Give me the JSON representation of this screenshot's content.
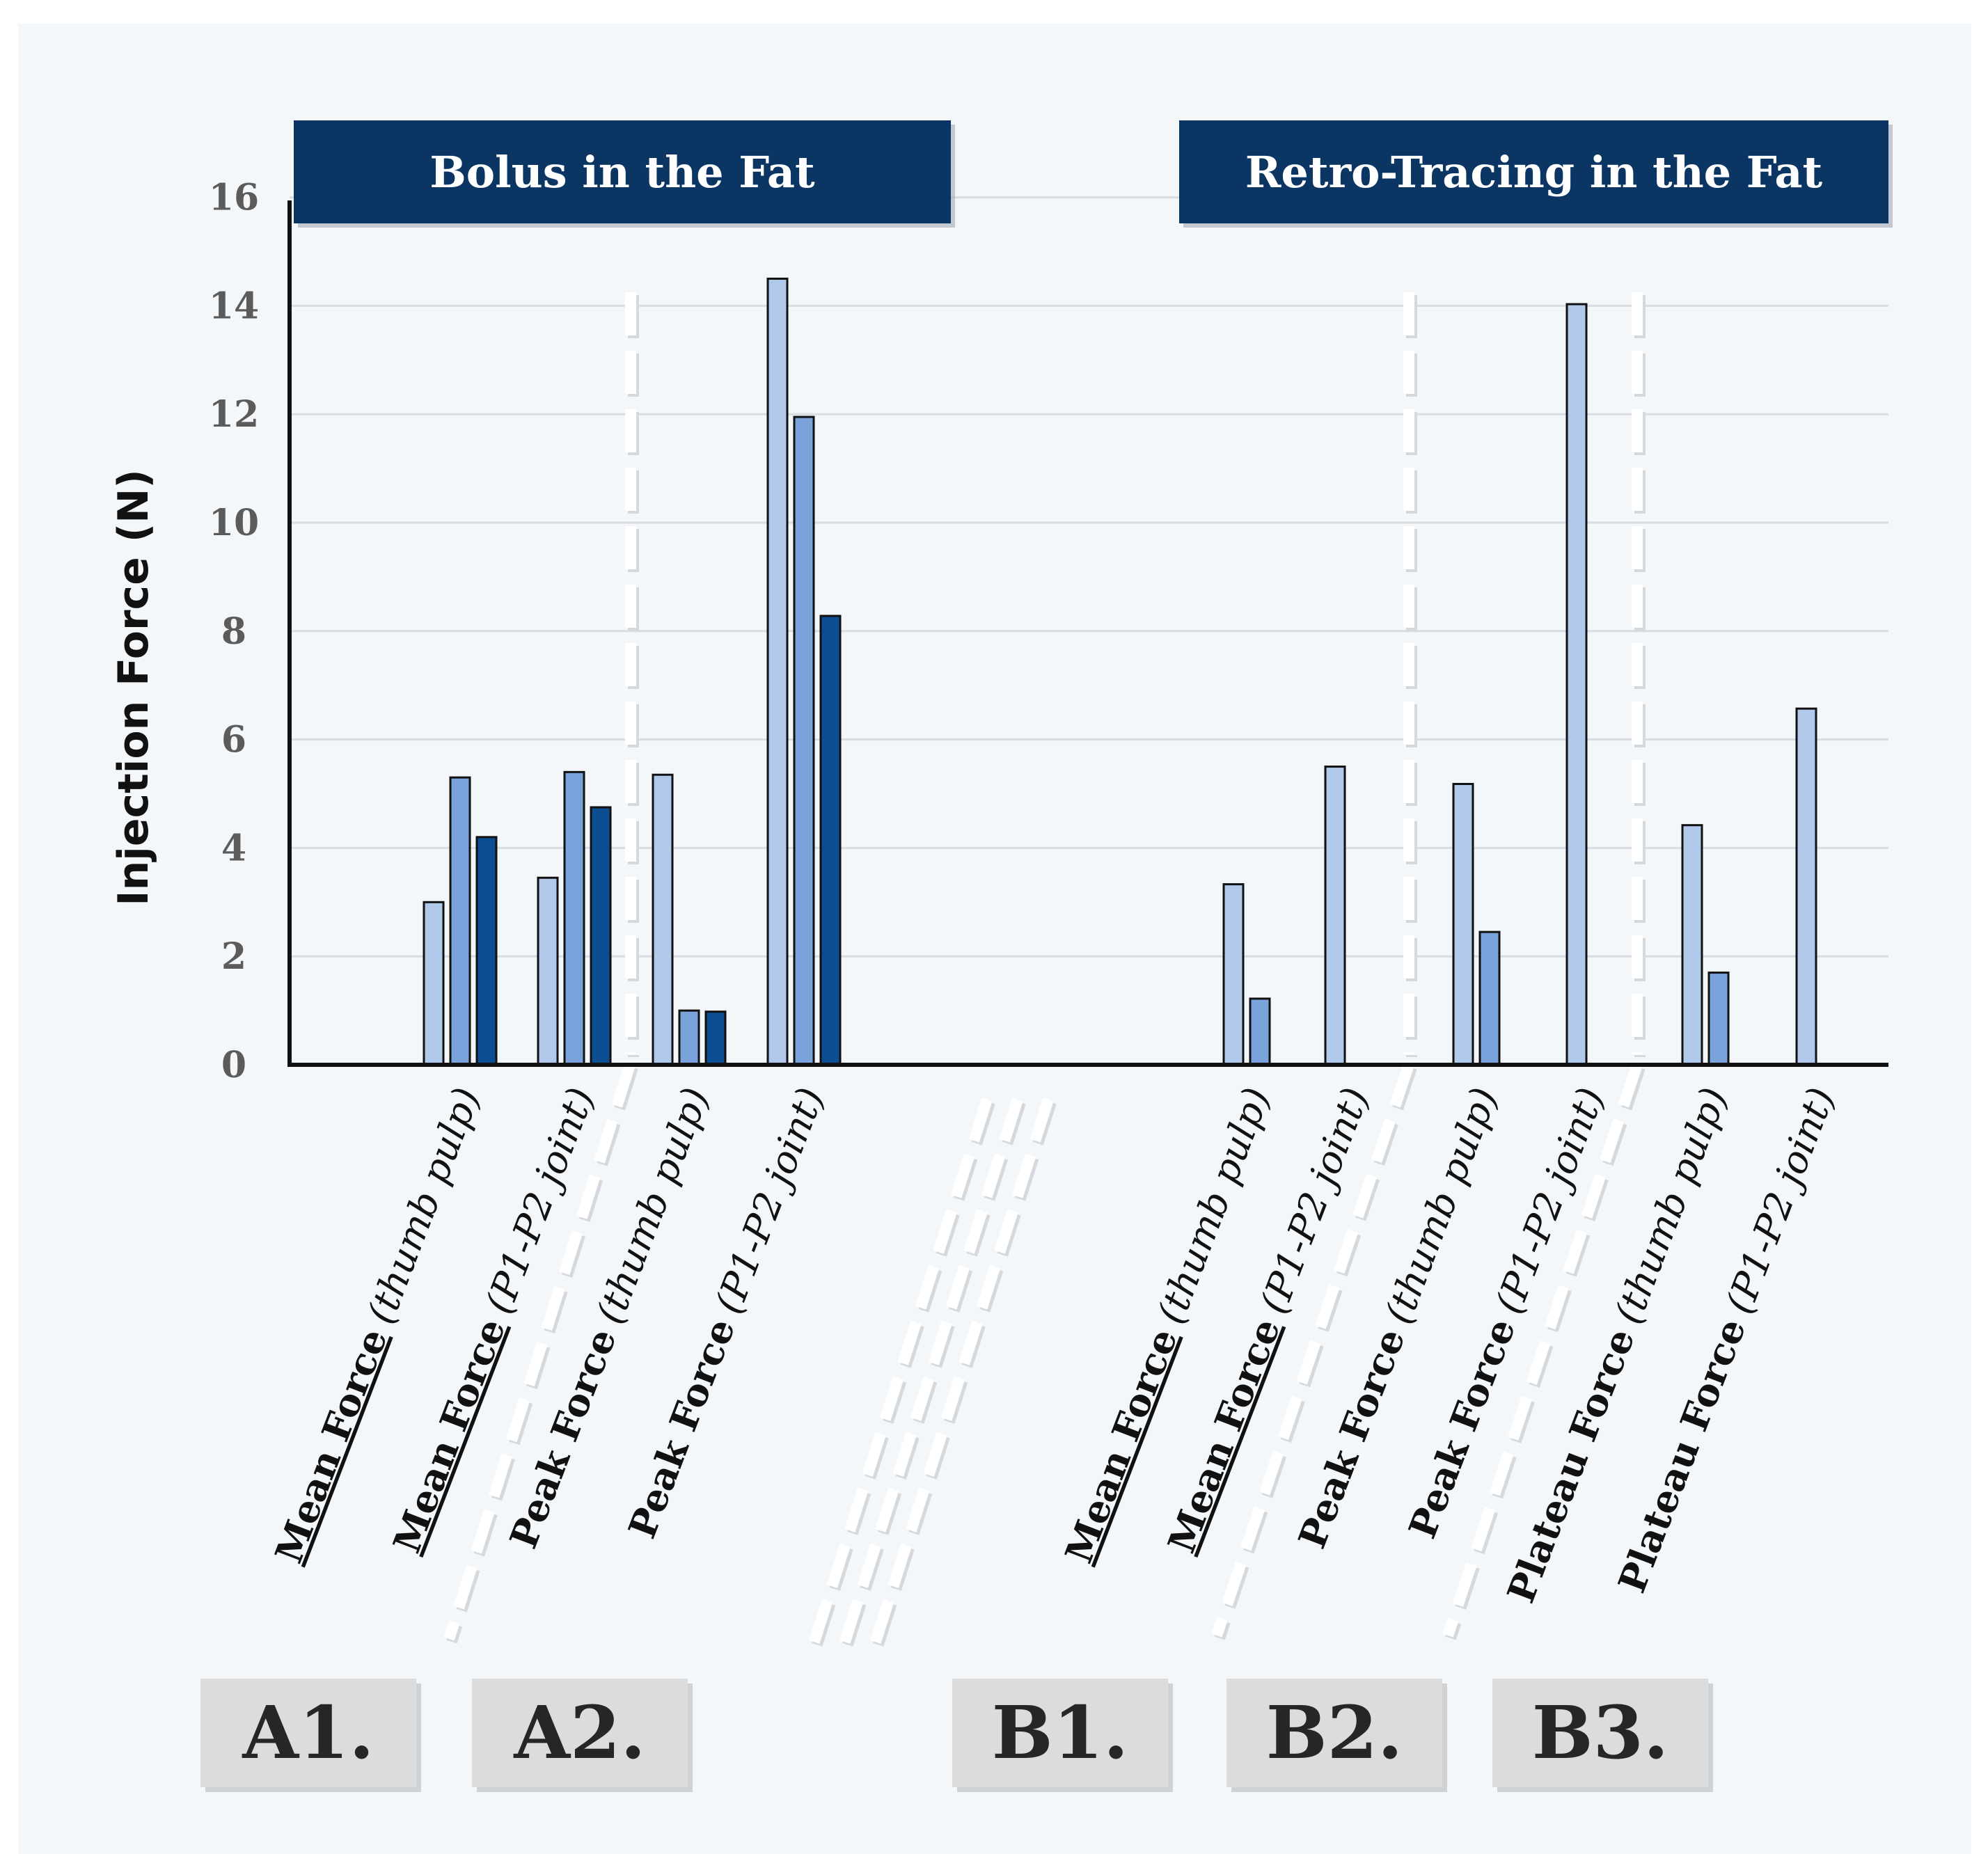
{
  "chart_data": {
    "type": "bar",
    "ylabel": "Injection Force (N)",
    "ylim": [
      0,
      16
    ],
    "yticks": [
      0,
      2,
      4,
      6,
      8,
      10,
      12,
      14,
      16
    ],
    "grid": true,
    "groups": [
      {
        "label": "Bolus in the Fat"
      },
      {
        "label": "Retro-Tracing in the Fat"
      }
    ],
    "panels": [
      "A1.",
      "A2.",
      "B1.",
      "B2.",
      "B3."
    ],
    "categories": [
      {
        "main": "Mean Force",
        "detail": "(thumb pulp)",
        "underline": true,
        "values": [
          3.0,
          5.3,
          4.2
        ]
      },
      {
        "main": "Mean Force",
        "detail": "(P1-P2 joint)",
        "underline": true,
        "values": [
          3.45,
          5.4,
          4.75
        ]
      },
      {
        "main": "Peak Force",
        "detail": "(thumb pulp)",
        "underline": false,
        "values": [
          5.35,
          1.0,
          0.98
        ]
      },
      {
        "main": "Peak Force",
        "detail": "(P1-P2 joint)",
        "underline": false,
        "values": [
          14.5,
          11.95,
          8.28
        ]
      },
      {
        "main": "Mean Force",
        "detail": "(thumb pulp)",
        "underline": true,
        "values": [
          3.33,
          1.22
        ]
      },
      {
        "main": "Mean Force",
        "detail": "(P1-P2 joint)",
        "underline": true,
        "values": [
          5.5
        ]
      },
      {
        "main": "Peak Force",
        "detail": "(thumb pulp)",
        "underline": false,
        "values": [
          5.18,
          2.45
        ]
      },
      {
        "main": "Peak Force",
        "detail": "(P1-P2 joint)",
        "underline": false,
        "values": [
          14.03
        ]
      },
      {
        "main": "Plateau Force",
        "detail": "(thumb pulp)",
        "underline": false,
        "values": [
          4.42,
          1.7
        ]
      },
      {
        "main": "Plateau Force",
        "detail": "(P1-P2 joint)",
        "underline": false,
        "values": [
          6.57
        ]
      }
    ],
    "colors": {
      "series": [
        "#b0c8ea",
        "#7ba3db",
        "#0d4e92"
      ],
      "banner": "#0b3563",
      "grid": "#d9dde2",
      "background": "#f3f7fa",
      "panel": "#dcdcdc"
    }
  }
}
